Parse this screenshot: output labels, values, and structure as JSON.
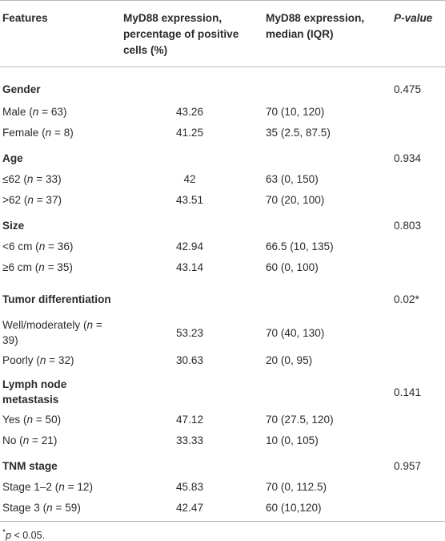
{
  "table": {
    "headers": [
      "Features",
      "MyD88 expression, percentage of positive cells (%)",
      "MyD88 expression, median (IQR)",
      "P-value"
    ],
    "rows": [
      {
        "type": "group",
        "feature": "Gender",
        "pct": "",
        "median": "",
        "p": "0.475"
      },
      {
        "type": "item",
        "feature": "Male (n = 63)",
        "pct": "43.26",
        "median": "70 (10, 120)",
        "p": ""
      },
      {
        "type": "item",
        "feature": "Female (n = 8)",
        "pct": "41.25",
        "median": "35 (2.5, 87.5)",
        "p": ""
      },
      {
        "type": "group",
        "feature": "Age",
        "pct": "",
        "median": "",
        "p": "0.934"
      },
      {
        "type": "item",
        "feature": "≤62 (n = 33)",
        "pct": "42",
        "median": "63 (0, 150)",
        "p": ""
      },
      {
        "type": "item",
        "feature": ">62 (n = 37)",
        "pct": "43.51",
        "median": "70 (20, 100)",
        "p": ""
      },
      {
        "type": "group",
        "feature": "Size",
        "pct": "",
        "median": "",
        "p": "0.803"
      },
      {
        "type": "item",
        "feature": "<6 cm (n = 36)",
        "pct": "42.94",
        "median": "66.5 (10, 135)",
        "p": ""
      },
      {
        "type": "item",
        "feature": "≥6 cm (n = 35)",
        "pct": "43.14",
        "median": "60 (0, 100)",
        "p": ""
      },
      {
        "type": "group",
        "feature": "Tumor differentiation",
        "pct": "",
        "median": "",
        "p": "0.02*"
      },
      {
        "type": "item",
        "feature": "Well/moderately (n = 39)",
        "pct": "53.23",
        "median": "70 (40, 130)",
        "p": ""
      },
      {
        "type": "item",
        "feature": "Poorly (n = 32)",
        "pct": "30.63",
        "median": "20 (0, 95)",
        "p": ""
      },
      {
        "type": "group",
        "feature": "Lymph node metastasis",
        "pct": "",
        "median": "",
        "p": "0.141"
      },
      {
        "type": "item",
        "feature": "Yes (n = 50)",
        "pct": "47.12",
        "median": "70 (27.5, 120)",
        "p": ""
      },
      {
        "type": "item",
        "feature": "No (n = 21)",
        "pct": "33.33",
        "median": "10 (0, 105)",
        "p": ""
      },
      {
        "type": "group",
        "feature": "TNM stage",
        "pct": "",
        "median": "",
        "p": "0.957"
      },
      {
        "type": "item",
        "feature": "Stage 1–2 (n = 12)",
        "pct": "45.83",
        "median": "70 (0, 112.5)",
        "p": ""
      },
      {
        "type": "item",
        "feature": "Stage 3 (n = 59)",
        "pct": "42.47",
        "median": "60 (10,120)",
        "p": ""
      }
    ]
  },
  "footnote": "*p < 0.05."
}
